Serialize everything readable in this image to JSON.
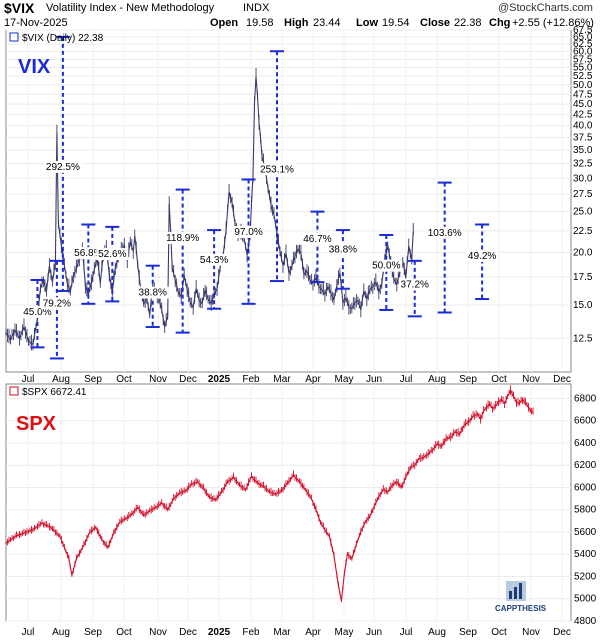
{
  "header": {
    "symbol": "$VIX",
    "name": "Volatility Index - New Methodology",
    "exchange": "INDX",
    "date": "17-Nov-2025",
    "watermark": "@StockCharts.com",
    "open_label": "Open",
    "open": "19.58",
    "high_label": "High",
    "high": "23.44",
    "low_label": "Low",
    "low": "19.54",
    "close_label": "Close",
    "close": "22.38",
    "chg_label": "Chg",
    "chg": "+2.55 (+12.86%)"
  },
  "top_panel": {
    "legend": "$VIX (Daily) 22.38",
    "big_label": "VIX",
    "big_label_color": "#1a2bd8"
  },
  "bottom_panel": {
    "legend": "$SPX 6672.41",
    "big_label": "SPX",
    "big_label_color": "#e01010"
  },
  "logo": {
    "text": "CAPPTHESIS"
  },
  "x_axis": {
    "labels": [
      "Jul",
      "Aug",
      "Sep",
      "Oct",
      "Nov",
      "Dec",
      "2025",
      "Feb",
      "Mar",
      "Apr",
      "May",
      "Jun",
      "Jul",
      "Aug",
      "Sep",
      "Oct",
      "Nov",
      "Dec"
    ],
    "bold_label": "2025"
  },
  "chart_data": [
    {
      "type": "line",
      "title": "$VIX (Daily) 22.38",
      "price_line_color": "#3a3a6a",
      "marker_color": "#1a2bd8",
      "y_scale": "log",
      "ylim": [
        10.4,
        67.5
      ],
      "y_ticks": [
        "67.5",
        "65.0",
        "62.5",
        "60.0",
        "57.5",
        "55.0",
        "52.5",
        "50.0",
        "47.5",
        "45.0",
        "42.5",
        "40.0",
        "37.5",
        "35.0",
        "32.5",
        "30.0",
        "27.5",
        "25.0",
        "22.5",
        "20.0",
        "17.5",
        "15.0",
        "12.5"
      ],
      "series_points": [
        [
          0,
          12.9
        ],
        [
          3,
          12.4
        ],
        [
          6,
          13.1
        ],
        [
          9,
          12.5
        ],
        [
          12,
          13.3
        ],
        [
          15,
          12.3
        ],
        [
          18,
          12.1
        ],
        [
          21,
          13.9
        ],
        [
          23,
          16.4
        ],
        [
          25,
          17.2
        ],
        [
          27,
          16.1
        ],
        [
          29,
          18.6
        ],
        [
          31,
          17.0
        ],
        [
          33,
          18.9
        ],
        [
          34,
          38.6
        ],
        [
          35,
          23.4
        ],
        [
          37,
          20.7
        ],
        [
          39,
          18.6
        ],
        [
          41,
          16.8
        ],
        [
          43,
          16.2
        ],
        [
          45,
          17.6
        ],
        [
          47,
          18.3
        ],
        [
          49,
          19.3
        ],
        [
          51,
          20.4
        ],
        [
          53,
          16.6
        ],
        [
          55,
          15.9
        ],
        [
          57,
          16.9
        ],
        [
          59,
          18.2
        ],
        [
          61,
          19.4
        ],
        [
          63,
          16.9
        ],
        [
          65,
          19.8
        ],
        [
          67,
          20.4
        ],
        [
          69,
          17.7
        ],
        [
          71,
          16.1
        ],
        [
          73,
          18.4
        ],
        [
          75,
          19.4
        ],
        [
          77,
          20.2
        ],
        [
          79,
          20.8
        ],
        [
          81,
          19.1
        ],
        [
          83,
          21.2
        ],
        [
          85,
          20.1
        ],
        [
          86,
          21.9
        ],
        [
          88,
          18.6
        ],
        [
          90,
          16.3
        ],
        [
          92,
          15.1
        ],
        [
          94,
          15.6
        ],
        [
          96,
          14.2
        ],
        [
          98,
          16.7
        ],
        [
          100,
          15.9
        ],
        [
          102,
          15.6
        ],
        [
          104,
          14.6
        ],
        [
          106,
          13.3
        ],
        [
          108,
          14.1
        ],
        [
          109,
          26.1
        ],
        [
          111,
          18.4
        ],
        [
          113,
          17.2
        ],
        [
          115,
          16.1
        ],
        [
          117,
          15.7
        ],
        [
          119,
          17.6
        ],
        [
          121,
          16.3
        ],
        [
          123,
          15.2
        ],
        [
          125,
          14.8
        ],
        [
          127,
          16.4
        ],
        [
          129,
          15.4
        ],
        [
          131,
          15.1
        ],
        [
          133,
          16.3
        ],
        [
          135,
          15.5
        ],
        [
          137,
          15.1
        ],
        [
          139,
          15.9
        ],
        [
          141,
          16.4
        ],
        [
          143,
          18.4
        ],
        [
          145,
          19.6
        ],
        [
          147,
          22.6
        ],
        [
          149,
          27.9
        ],
        [
          151,
          26.2
        ],
        [
          153,
          23.3
        ],
        [
          155,
          21.8
        ],
        [
          157,
          22.3
        ],
        [
          159,
          21.6
        ],
        [
          161,
          19.7
        ],
        [
          163,
          21.9
        ],
        [
          165,
          30.4
        ],
        [
          166,
          45.3
        ],
        [
          167,
          52.3
        ],
        [
          168,
          47.0
        ],
        [
          169,
          40.7
        ],
        [
          170,
          37.6
        ],
        [
          171,
          33.8
        ],
        [
          173,
          31.7
        ],
        [
          175,
          28.4
        ],
        [
          177,
          25.9
        ],
        [
          179,
          24.6
        ],
        [
          181,
          22.1
        ],
        [
          183,
          20.1
        ],
        [
          185,
          18.6
        ],
        [
          187,
          19.9
        ],
        [
          189,
          17.8
        ],
        [
          191,
          18.6
        ],
        [
          193,
          19.6
        ],
        [
          195,
          20.4
        ],
        [
          197,
          19.9
        ],
        [
          199,
          17.7
        ],
        [
          201,
          18.1
        ],
        [
          203,
          17.2
        ],
        [
          205,
          16.9
        ],
        [
          207,
          17.4
        ],
        [
          209,
          16.6
        ],
        [
          211,
          16.3
        ],
        [
          213,
          15.9
        ],
        [
          215,
          16.6
        ],
        [
          217,
          16.0
        ],
        [
          219,
          15.4
        ],
        [
          221,
          16.7
        ],
        [
          223,
          17.9
        ],
        [
          225,
          15.2
        ],
        [
          227,
          15.6
        ],
        [
          229,
          14.8
        ],
        [
          231,
          14.7
        ],
        [
          233,
          15.2
        ],
        [
          235,
          15.4
        ],
        [
          237,
          14.6
        ],
        [
          239,
          16.2
        ],
        [
          241,
          15.5
        ],
        [
          243,
          16.3
        ],
        [
          245,
          16.6
        ],
        [
          247,
          17.0
        ],
        [
          249,
          16.1
        ],
        [
          251,
          16.8
        ],
        [
          253,
          19.3
        ],
        [
          255,
          20.8
        ],
        [
          257,
          18.7
        ],
        [
          259,
          17.3
        ],
        [
          261,
          16.8
        ],
        [
          263,
          17.9
        ],
        [
          265,
          19.1
        ],
        [
          267,
          17.4
        ],
        [
          269,
          20.7
        ],
        [
          271,
          19.2
        ],
        [
          272,
          22.4
        ]
      ],
      "bracket_annotations": [
        {
          "label": "45.0%",
          "x": 21,
          "low": 11.9,
          "high": 17.2,
          "label_y": 14.2
        },
        {
          "label": "79.2%",
          "x": 34,
          "low": 11.2,
          "high": 19.1,
          "label_y": 14.9
        },
        {
          "label": "292.5%",
          "x": 38,
          "low": 16.2,
          "high": 65.0,
          "label_y": 31.4
        },
        {
          "label": "56.8%",
          "x": 55,
          "low": 15.1,
          "high": 23.3,
          "label_y": 19.6
        },
        {
          "label": "52.6%",
          "x": 71,
          "low": 15.3,
          "high": 23.0,
          "label_y": 19.5
        },
        {
          "label": "38.8%",
          "x": 98,
          "low": 13.3,
          "high": 18.6,
          "label_y": 15.8
        },
        {
          "label": "118.9%",
          "x": 118,
          "low": 12.9,
          "high": 28.2,
          "label_y": 21.3
        },
        {
          "label": "54.3%",
          "x": 139,
          "low": 14.7,
          "high": 22.6,
          "label_y": 18.9
        },
        {
          "label": "97.0%",
          "x": 162,
          "low": 15.1,
          "high": 29.8,
          "label_y": 22.0
        },
        {
          "label": "253.1%",
          "x": 181,
          "low": 17.1,
          "high": 60.1,
          "label_y": 31.0
        },
        {
          "label": "46.7%",
          "x": 208,
          "low": 17.0,
          "high": 25.0,
          "label_y": 21.2
        },
        {
          "label": "38.8%",
          "x": 225,
          "low": 16.4,
          "high": 22.6,
          "label_y": 20.0
        },
        {
          "label": "50.0%",
          "x": 254,
          "low": 14.6,
          "high": 22.0,
          "label_y": 18.3
        },
        {
          "label": "37.2%",
          "x": 273,
          "low": 14.1,
          "high": 19.1,
          "label_y": 16.5
        },
        {
          "label": "103.6%",
          "x": 293,
          "low": 14.4,
          "high": 29.3,
          "label_y": 21.9
        },
        {
          "label": "49.2%",
          "x": 318,
          "low": 15.5,
          "high": 23.3,
          "label_y": 19.3
        }
      ]
    },
    {
      "type": "line",
      "title": "$SPX 6672.41",
      "price_line_color": "#d0102a",
      "ylim": [
        4800,
        6930
      ],
      "y_ticks": [
        "6800",
        "6600",
        "6400",
        "6200",
        "6000",
        "5800",
        "5600",
        "5400",
        "5200",
        "5000",
        "4800"
      ],
      "series_points": [
        [
          0,
          5500
        ],
        [
          6,
          5560
        ],
        [
          12,
          5590
        ],
        [
          18,
          5620
        ],
        [
          24,
          5680
        ],
        [
          30,
          5640
        ],
        [
          36,
          5560
        ],
        [
          42,
          5360
        ],
        [
          44,
          5210
        ],
        [
          47,
          5360
        ],
        [
          52,
          5480
        ],
        [
          56,
          5600
        ],
        [
          60,
          5640
        ],
        [
          64,
          5530
        ],
        [
          68,
          5460
        ],
        [
          72,
          5590
        ],
        [
          76,
          5690
        ],
        [
          80,
          5720
        ],
        [
          84,
          5760
        ],
        [
          88,
          5820
        ],
        [
          92,
          5750
        ],
        [
          96,
          5790
        ],
        [
          100,
          5820
        ],
        [
          104,
          5860
        ],
        [
          108,
          5800
        ],
        [
          112,
          5900
        ],
        [
          116,
          5950
        ],
        [
          120,
          5970
        ],
        [
          124,
          6030
        ],
        [
          128,
          6050
        ],
        [
          132,
          5990
        ],
        [
          136,
          5910
        ],
        [
          140,
          5890
        ],
        [
          144,
          5960
        ],
        [
          148,
          6050
        ],
        [
          152,
          6090
        ],
        [
          156,
          6020
        ],
        [
          160,
          5980
        ],
        [
          164,
          6100
        ],
        [
          168,
          6040
        ],
        [
          172,
          6010
        ],
        [
          176,
          5960
        ],
        [
          180,
          5940
        ],
        [
          184,
          5970
        ],
        [
          188,
          6040
        ],
        [
          192,
          6110
        ],
        [
          196,
          6050
        ],
        [
          200,
          5980
        ],
        [
          204,
          5900
        ],
        [
          207,
          5800
        ],
        [
          210,
          5690
        ],
        [
          213,
          5620
        ],
        [
          216,
          5560
        ],
        [
          219,
          5390
        ],
        [
          222,
          5120
        ],
        [
          224,
          4980
        ],
        [
          226,
          5230
        ],
        [
          228,
          5400
        ],
        [
          231,
          5360
        ],
        [
          234,
          5490
        ],
        [
          237,
          5600
        ],
        [
          240,
          5690
        ],
        [
          243,
          5740
        ],
        [
          246,
          5830
        ],
        [
          249,
          5920
        ],
        [
          252,
          5980
        ],
        [
          255,
          5960
        ],
        [
          258,
          6020
        ],
        [
          261,
          6050
        ],
        [
          264,
          6000
        ],
        [
          267,
          6090
        ],
        [
          270,
          6180
        ],
        [
          273,
          6200
        ],
        [
          276,
          6260
        ],
        [
          279,
          6270
        ],
        [
          282,
          6300
        ],
        [
          285,
          6340
        ],
        [
          288,
          6390
        ],
        [
          291,
          6370
        ],
        [
          294,
          6440
        ],
        [
          297,
          6450
        ],
        [
          300,
          6500
        ],
        [
          303,
          6480
        ],
        [
          306,
          6560
        ],
        [
          309,
          6590
        ],
        [
          312,
          6640
        ],
        [
          315,
          6660
        ],
        [
          317,
          6610
        ],
        [
          319,
          6690
        ],
        [
          321,
          6720
        ],
        [
          323,
          6750
        ],
        [
          325,
          6710
        ],
        [
          327,
          6730
        ],
        [
          329,
          6770
        ],
        [
          331,
          6790
        ],
        [
          333,
          6750
        ],
        [
          335,
          6820
        ],
        [
          337,
          6870
        ],
        [
          339,
          6820
        ],
        [
          341,
          6760
        ],
        [
          343,
          6760
        ],
        [
          345,
          6790
        ],
        [
          347,
          6760
        ],
        [
          349,
          6720
        ],
        [
          351,
          6680
        ],
        [
          352,
          6672
        ]
      ]
    }
  ]
}
